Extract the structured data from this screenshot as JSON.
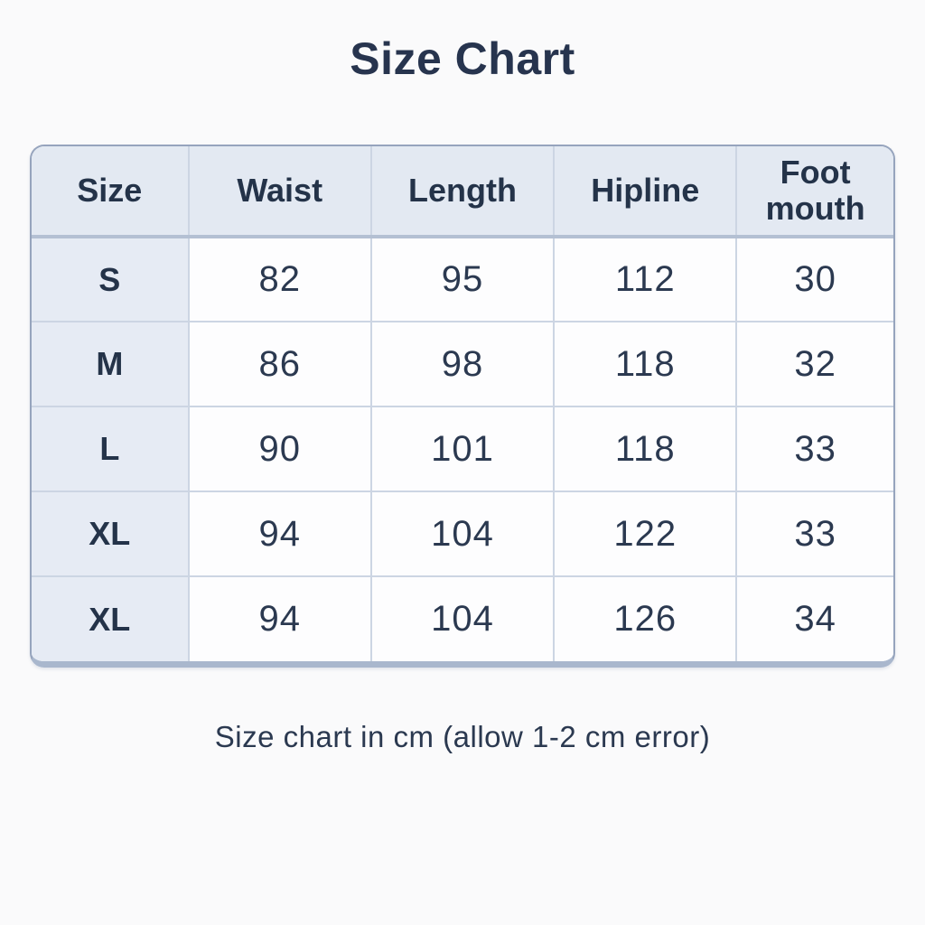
{
  "title": "Size Chart",
  "footer_note": "Size chart in cm (allow 1-2 cm error)",
  "chart_data": {
    "type": "table",
    "title": "Size Chart",
    "unit": "cm",
    "note": "Size chart in cm (allow 1-2 cm error)",
    "columns": [
      "Size",
      "Waist",
      "Length",
      "Hipline",
      "Foot mouth"
    ],
    "rows": [
      [
        "S",
        "82",
        "95",
        "112",
        "30"
      ],
      [
        "M",
        "86",
        "98",
        "118",
        "32"
      ],
      [
        "L",
        "90",
        "101",
        "118",
        "33"
      ],
      [
        "XL",
        "94",
        "104",
        "122",
        "33"
      ],
      [
        "XL",
        "94",
        "104",
        "126",
        "34"
      ]
    ]
  },
  "colors": {
    "page-bg": "#fafafb",
    "title-color": "#27344e",
    "header-bg": "#e3e9f2",
    "rowhead-bg": "#e6ebf4",
    "cell-bg": "#fdfdfe",
    "grid-line": "#ccd5e3",
    "header-divider": "#b4c0d3",
    "outer-border": "#96a4bd",
    "bottom-edge": "#a9b7cd",
    "text-dark": "#243349",
    "number-color": "#2b3950"
  }
}
